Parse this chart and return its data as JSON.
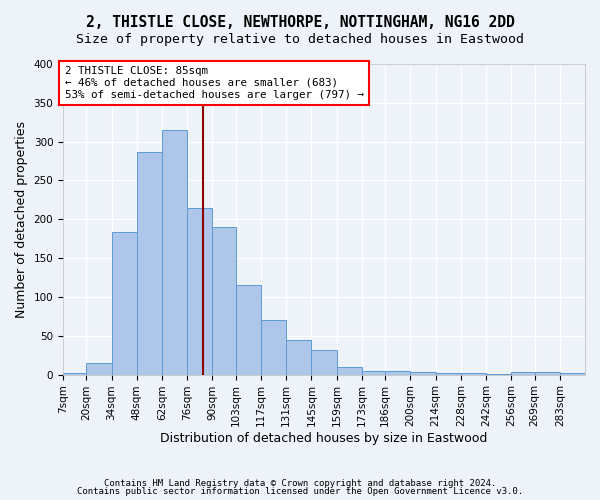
{
  "title_line1": "2, THISTLE CLOSE, NEWTHORPE, NOTTINGHAM, NG16 2DD",
  "title_line2": "Size of property relative to detached houses in Eastwood",
  "xlabel": "Distribution of detached houses by size in Eastwood",
  "ylabel": "Number of detached properties",
  "footer_line1": "Contains HM Land Registry data © Crown copyright and database right 2024.",
  "footer_line2": "Contains public sector information licensed under the Open Government Licence v3.0.",
  "annotation_line1": "2 THISTLE CLOSE: 85sqm",
  "annotation_line2": "← 46% of detached houses are smaller (683)",
  "annotation_line3": "53% of semi-detached houses are larger (797) →",
  "bar_color": "#aec6e8",
  "bar_edge_color": "#5b9bd5",
  "vline_color": "#8b0000",
  "vline_x": 85,
  "categories": [
    "7sqm",
    "20sqm",
    "34sqm",
    "48sqm",
    "62sqm",
    "76sqm",
    "90sqm",
    "103sqm",
    "117sqm",
    "131sqm",
    "145sqm",
    "159sqm",
    "173sqm",
    "186sqm",
    "200sqm",
    "214sqm",
    "228sqm",
    "242sqm",
    "256sqm",
    "269sqm",
    "283sqm"
  ],
  "bin_edges": [
    7,
    20,
    34,
    48,
    62,
    76,
    90,
    103,
    117,
    131,
    145,
    159,
    173,
    186,
    200,
    214,
    228,
    242,
    256,
    269,
    283,
    297
  ],
  "bar_heights": [
    2,
    15,
    184,
    287,
    315,
    215,
    190,
    115,
    70,
    45,
    32,
    10,
    5,
    4,
    3,
    2,
    2,
    1,
    3,
    3,
    2
  ],
  "ylim_max": 400,
  "yticks": [
    0,
    50,
    100,
    150,
    200,
    250,
    300,
    350,
    400
  ],
  "background_color": "#eef2f9",
  "grid_color": "#ffffff",
  "title_fontsize": 10.5,
  "subtitle_fontsize": 9.5,
  "axis_label_fontsize": 9,
  "tick_fontsize": 7.5,
  "footer_fontsize": 6.5
}
